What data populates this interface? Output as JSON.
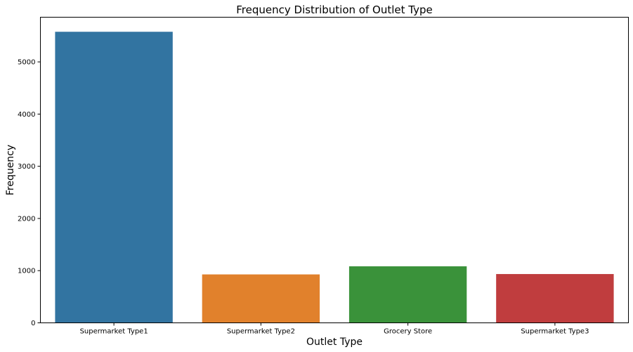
{
  "chart_data": {
    "type": "bar",
    "title": "Frequency Distribution of Outlet Type",
    "xlabel": "Outlet Type",
    "ylabel": "Frequency",
    "categories": [
      "Supermarket Type1",
      "Supermarket Type2",
      "Grocery Store",
      "Supermarket Type3"
    ],
    "values": [
      5577,
      928,
      1083,
      935
    ],
    "colors": [
      "#3274a1",
      "#e1812c",
      "#3a923a",
      "#c03d3e"
    ],
    "ylim": [
      0,
      5856
    ],
    "yticks": [
      0,
      1000,
      2000,
      3000,
      4000,
      5000
    ],
    "grid": false,
    "legend": "none"
  }
}
